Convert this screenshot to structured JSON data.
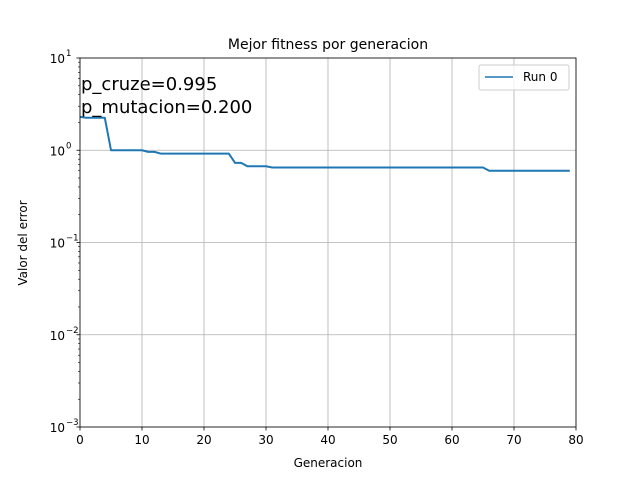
{
  "chart_data": {
    "type": "line",
    "title": "Mejor fitness por generacion",
    "xlabel": "Generacion",
    "ylabel": "Valor del error",
    "xlim": [
      0,
      80
    ],
    "ylim": [
      0.001,
      10
    ],
    "yscale": "log",
    "grid": true,
    "legend_position": "top-right",
    "xticks": [
      0,
      10,
      20,
      30,
      40,
      50,
      60,
      70,
      80
    ],
    "xtick_labels": [
      "0",
      "10",
      "20",
      "30",
      "40",
      "50",
      "60",
      "70",
      "80"
    ],
    "yticks": [
      0.001,
      0.01,
      0.1,
      1,
      10
    ],
    "ytick_labels": [
      {
        "base": "10",
        "exp": "−3"
      },
      {
        "base": "10",
        "exp": "−2"
      },
      {
        "base": "10",
        "exp": "−1"
      },
      {
        "base": "10",
        "exp": "0"
      },
      {
        "base": "10",
        "exp": "1"
      }
    ],
    "annotations": [
      "p_cruze=0.995",
      "p_mutacion=0.200"
    ],
    "series": [
      {
        "name": "Run 0",
        "color": "#1f77b4",
        "x": [
          0,
          1,
          2,
          3,
          4,
          5,
          6,
          7,
          8,
          9,
          10,
          11,
          12,
          13,
          14,
          15,
          16,
          17,
          18,
          19,
          20,
          21,
          22,
          23,
          24,
          25,
          26,
          27,
          28,
          29,
          30,
          31,
          32,
          33,
          34,
          35,
          36,
          37,
          38,
          39,
          40,
          41,
          42,
          43,
          44,
          45,
          46,
          47,
          48,
          49,
          50,
          51,
          52,
          53,
          54,
          55,
          56,
          57,
          58,
          59,
          60,
          61,
          62,
          63,
          64,
          65,
          66,
          67,
          68,
          69,
          70,
          71,
          72,
          73,
          74,
          75,
          76,
          77,
          78,
          79
        ],
        "values": [
          2.3,
          2.25,
          2.25,
          2.25,
          2.25,
          1.0,
          1.0,
          1.0,
          1.0,
          1.0,
          1.0,
          0.96,
          0.96,
          0.92,
          0.92,
          0.92,
          0.92,
          0.92,
          0.92,
          0.92,
          0.92,
          0.92,
          0.92,
          0.92,
          0.92,
          0.73,
          0.73,
          0.67,
          0.67,
          0.67,
          0.67,
          0.65,
          0.65,
          0.65,
          0.65,
          0.65,
          0.65,
          0.65,
          0.65,
          0.65,
          0.65,
          0.65,
          0.65,
          0.65,
          0.65,
          0.65,
          0.65,
          0.65,
          0.65,
          0.65,
          0.65,
          0.65,
          0.65,
          0.65,
          0.65,
          0.65,
          0.65,
          0.65,
          0.65,
          0.65,
          0.65,
          0.65,
          0.65,
          0.65,
          0.65,
          0.65,
          0.6,
          0.6,
          0.6,
          0.6,
          0.6,
          0.6,
          0.6,
          0.6,
          0.6,
          0.6,
          0.6,
          0.6,
          0.6,
          0.6
        ]
      }
    ]
  }
}
